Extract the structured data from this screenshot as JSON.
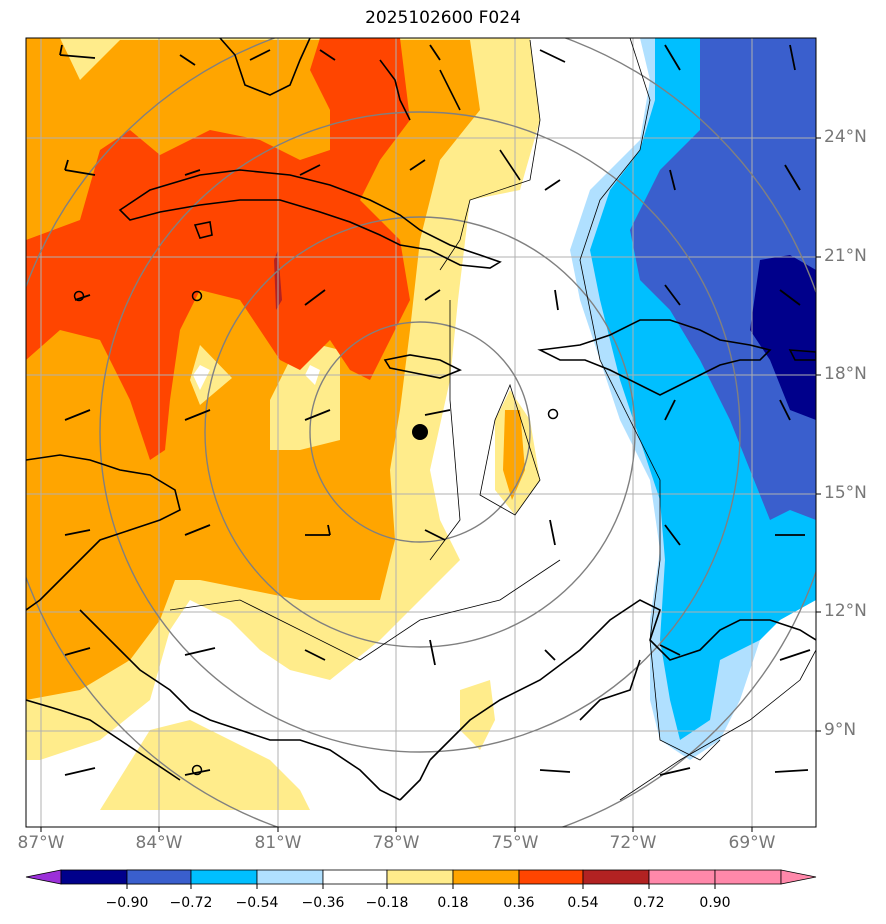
{
  "title": "2025102600 F024",
  "map": {
    "lon_range": [
      -87.4,
      -67.6
    ],
    "lat_range": [
      6.9,
      26.5
    ],
    "lon_labels": [
      "87°W",
      "84°W",
      "81°W",
      "78°W",
      "75°W",
      "72°W",
      "69°W"
    ],
    "lat_labels": [
      "24°N",
      "21°N",
      "18°N",
      "15°N",
      "12°N",
      "9°N"
    ],
    "storm_center": {
      "lon": -77.4,
      "lat": 16.6
    },
    "range_rings": "concentric gray circles around storm center",
    "gridlines": true
  },
  "colorbar": {
    "ticks": [
      "−0.90",
      "−0.72",
      "−0.54",
      "−0.36",
      "−0.18",
      "0.18",
      "0.36",
      "0.54",
      "0.72",
      "0.90"
    ],
    "colors": [
      "#9b30d9",
      "#00008b",
      "#3a5fcd",
      "#00bfff",
      "#b0e0ff",
      "#ffffff",
      "#ffec8b",
      "#ffa500",
      "#ff4500",
      "#b22222",
      "#ff88aa"
    ]
  }
}
